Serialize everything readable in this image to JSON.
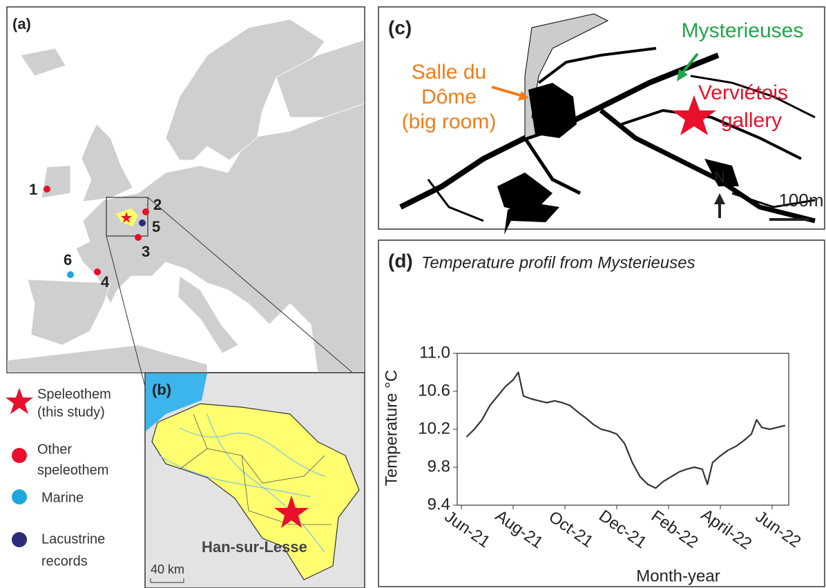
{
  "figure": {
    "panel_a": {
      "label": "(a)",
      "sites": [
        "1",
        "2",
        "3",
        "4",
        "5",
        "6"
      ]
    },
    "legend": [
      {
        "lines": [
          "Speleothem",
          "(this study)"
        ]
      },
      {
        "lines": [
          "Other",
          "speleothem"
        ]
      },
      {
        "lines": [
          "Marine"
        ]
      },
      {
        "lines": [
          "Lacustrine",
          "records"
        ]
      }
    ],
    "panel_b": {
      "label": "(b)",
      "place": "Han-sur-Lesse",
      "scale": "40 km"
    },
    "panel_c": {
      "label": "(c)",
      "room": [
        "Salle du",
        "Dôme",
        "(big room)"
      ],
      "site": "Mysterieuses",
      "gallery": [
        "Verviétois",
        "gallery"
      ],
      "north": "N",
      "scale": "100m"
    },
    "panel_d": {
      "label": "(d)"
    }
  },
  "chart_data": {
    "type": "line",
    "title": "Temperature profil from Mysterieuses",
    "x_label": "Month-year",
    "y_label": "Temperature °C",
    "xlim": [
      -0.16,
      12.64
    ],
    "xticks": [
      {
        "value": 0,
        "label": "Jun-21"
      },
      {
        "value": 2,
        "label": "Aug-21"
      },
      {
        "value": 4,
        "label": "Oct-21"
      },
      {
        "value": 6,
        "label": "Dec-21"
      },
      {
        "value": 8,
        "label": "Feb-22"
      },
      {
        "value": 10,
        "label": "April-22"
      },
      {
        "value": 12,
        "label": "Jun-22"
      }
    ],
    "ylim": [
      9.4,
      11.0
    ],
    "yticks": [
      9.4,
      9.8,
      10.2,
      10.6,
      {
        "value": 11,
        "label": "11.0"
      }
    ],
    "series": [
      {
        "color": "#333333",
        "x": [
          0.2,
          0.5,
          0.8,
          1.1,
          1.4,
          1.7,
          2.0,
          2.2,
          2.4,
          2.7,
          3.0,
          3.3,
          3.6,
          3.9,
          4.2,
          4.5,
          4.8,
          5.1,
          5.4,
          5.7,
          6.0,
          6.3,
          6.6,
          6.9,
          7.2,
          7.5,
          7.8,
          8.1,
          8.4,
          8.7,
          9.0,
          9.3,
          9.5,
          9.7,
          10.0,
          10.3,
          10.6,
          10.9,
          11.2,
          11.4,
          11.6,
          11.9,
          12.2,
          12.5
        ],
        "values": [
          10.12,
          10.2,
          10.3,
          10.45,
          10.55,
          10.65,
          10.72,
          10.8,
          10.55,
          10.52,
          10.5,
          10.48,
          10.5,
          10.48,
          10.45,
          10.38,
          10.32,
          10.25,
          10.2,
          10.18,
          10.15,
          10.05,
          9.85,
          9.7,
          9.62,
          9.58,
          9.65,
          9.7,
          9.75,
          9.78,
          9.8,
          9.78,
          9.62,
          9.85,
          9.92,
          9.98,
          10.02,
          10.08,
          10.15,
          10.3,
          10.22,
          10.2,
          10.22,
          10.24
        ]
      }
    ]
  }
}
